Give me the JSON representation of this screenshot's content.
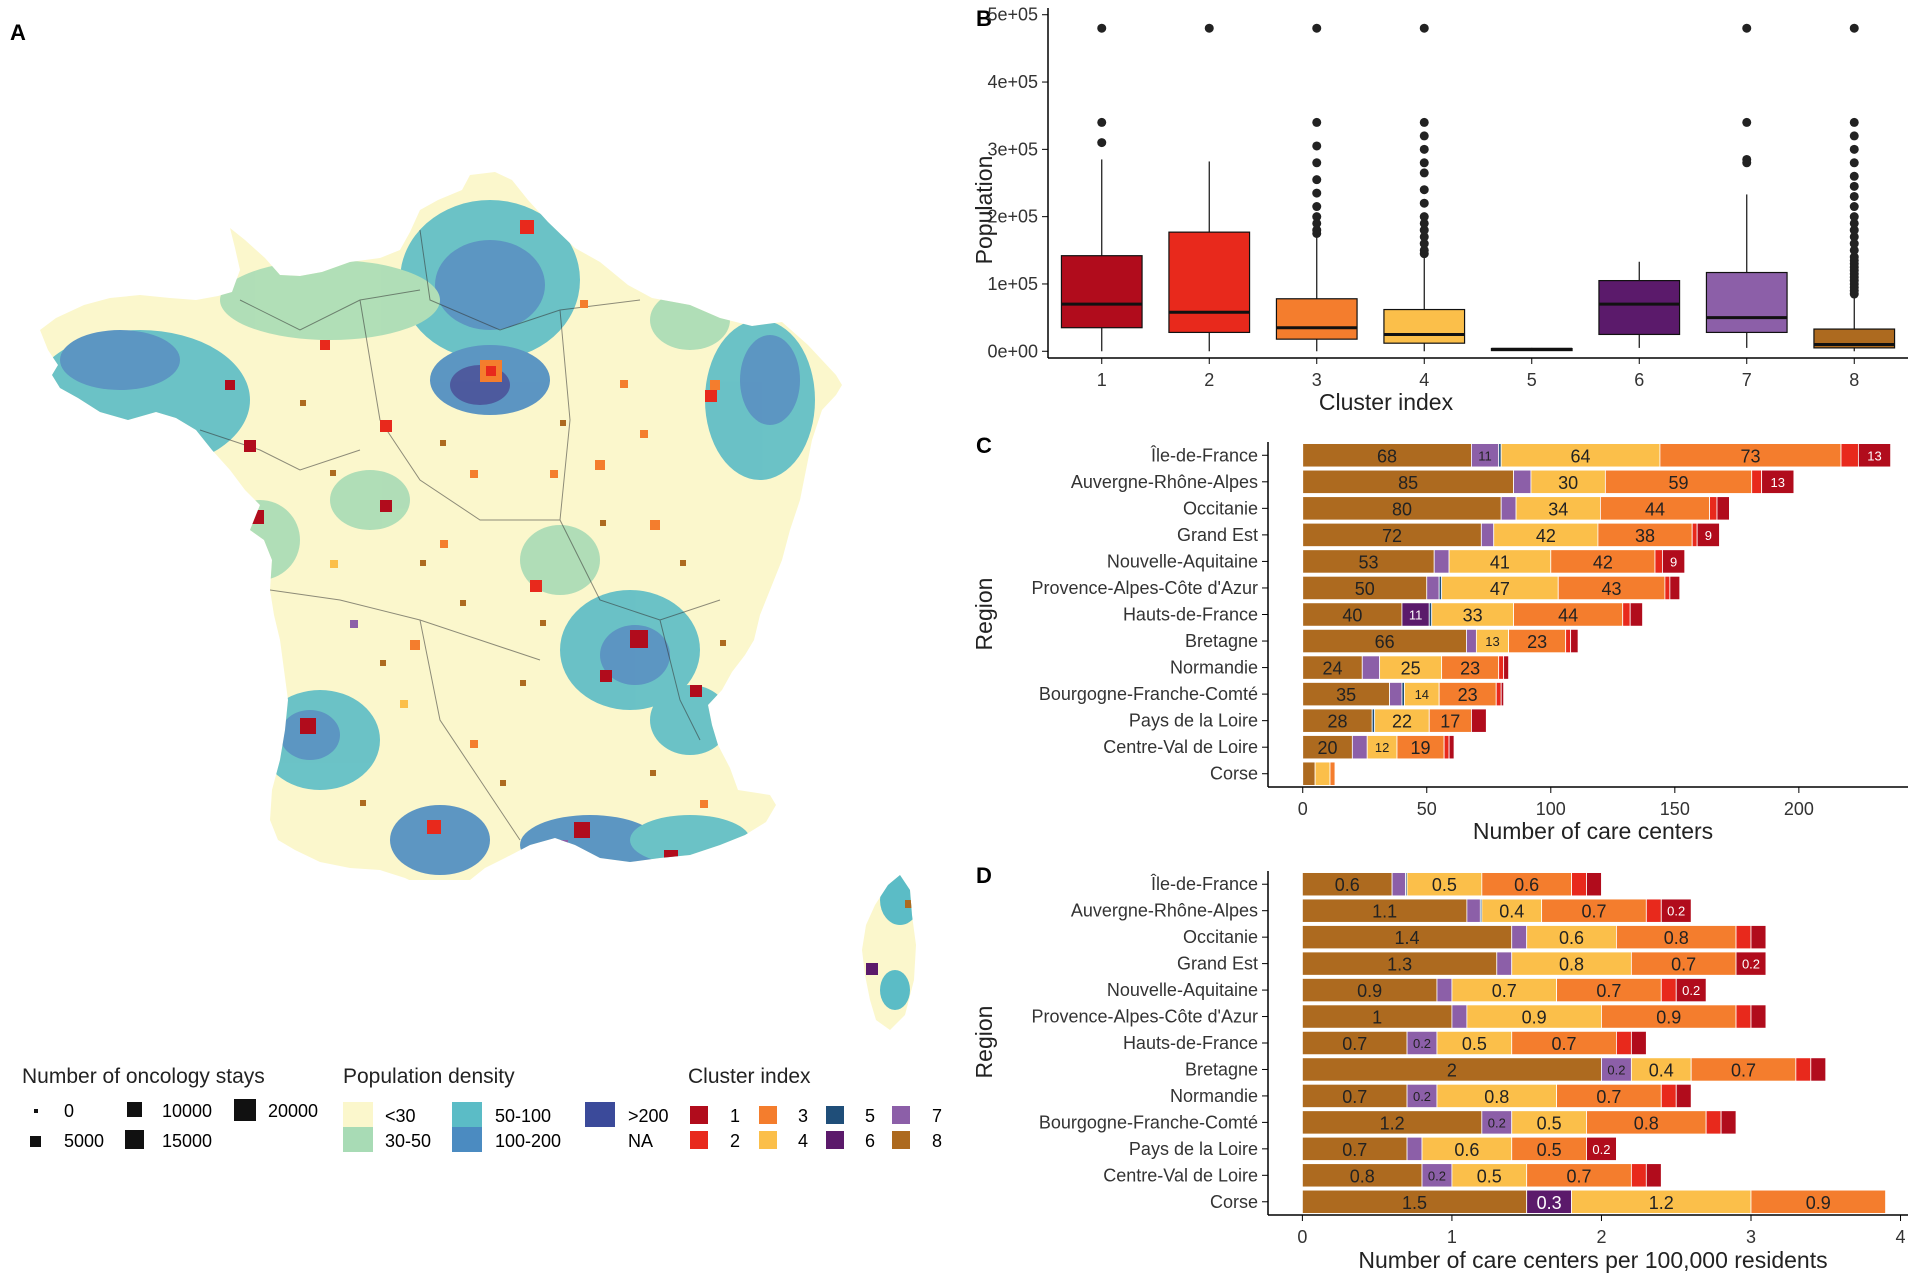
{
  "panel_labels": {
    "a": "A",
    "b": "B",
    "c": "C",
    "d": "D"
  },
  "colors": {
    "cluster": [
      "#b10c1c",
      "#e8291c",
      "#f47d2d",
      "#fbbf4a",
      "#1f4e79",
      "#5b1a6b",
      "#8c5fa8",
      "#ad6a1f"
    ],
    "density": {
      "<30": "#fbf7cc",
      "30-50": "#a8dbb5",
      "50-100": "#5bbcc6",
      "100-200": "#4b8bc1",
      ">200": "#3b4a9a",
      "NA": "#ffffff"
    }
  },
  "legend": {
    "stays": {
      "title": "Number of oncology stays",
      "items": [
        "0",
        "5000",
        "10000",
        "15000",
        "20000"
      ]
    },
    "density": {
      "title": "Population density",
      "items": [
        "<30",
        "30-50",
        "50-100",
        "100-200",
        ">200",
        "NA"
      ]
    },
    "cluster": {
      "title": "Cluster index",
      "items": [
        "1",
        "2",
        "3",
        "4",
        "5",
        "6",
        "7",
        "8"
      ]
    }
  },
  "chart_data": [
    {
      "panel": "B",
      "type": "box",
      "xlabel": "Cluster index",
      "ylabel": "Population",
      "categories": [
        "1",
        "2",
        "3",
        "4",
        "5",
        "6",
        "7",
        "8"
      ],
      "ytick_labels": [
        "0e+00",
        "1e+05",
        "2e+05",
        "3e+05",
        "4e+05",
        "5e+05"
      ],
      "yticks": [
        0,
        100000,
        200000,
        300000,
        400000,
        500000
      ],
      "ylim": [
        -10000,
        510000
      ],
      "boxes": [
        {
          "min": 0,
          "q1": 35000,
          "median": 70000,
          "q3": 142000,
          "max": 285000,
          "outliers": [
            310000,
            340000,
            480000
          ]
        },
        {
          "min": 0,
          "q1": 28000,
          "median": 58000,
          "q3": 177000,
          "max": 282000,
          "outliers": [
            480000
          ]
        },
        {
          "min": 0,
          "q1": 18000,
          "median": 35000,
          "q3": 78000,
          "max": 170000,
          "outliers": [
            175000,
            180000,
            190000,
            200000,
            215000,
            235000,
            255000,
            280000,
            305000,
            340000,
            480000
          ]
        },
        {
          "min": 0,
          "q1": 12000,
          "median": 25000,
          "q3": 62000,
          "max": 140000,
          "outliers": [
            145000,
            150000,
            160000,
            170000,
            180000,
            190000,
            200000,
            220000,
            240000,
            265000,
            280000,
            300000,
            320000,
            340000,
            480000
          ]
        },
        {
          "min": 1000,
          "q1": 2000,
          "median": 3000,
          "q3": 4000,
          "max": 5000,
          "outliers": []
        },
        {
          "min": 5000,
          "q1": 25000,
          "median": 70000,
          "q3": 105000,
          "max": 133000,
          "outliers": []
        },
        {
          "min": 5000,
          "q1": 28000,
          "median": 50000,
          "q3": 117000,
          "max": 233000,
          "outliers": [
            280000,
            285000,
            340000,
            480000
          ]
        },
        {
          "min": 0,
          "q1": 5000,
          "median": 10000,
          "q3": 33000,
          "max": 80000,
          "outliers": [
            85000,
            90000,
            95000,
            100000,
            105000,
            110000,
            115000,
            120000,
            125000,
            130000,
            135000,
            140000,
            150000,
            160000,
            170000,
            180000,
            190000,
            200000,
            215000,
            230000,
            245000,
            260000,
            280000,
            300000,
            320000,
            340000,
            480000
          ]
        }
      ]
    },
    {
      "panel": "C",
      "type": "bar",
      "orientation": "horizontal",
      "stacked": true,
      "xlabel": "Number of care centers",
      "ylabel": "Region",
      "xlim": [
        -14,
        244
      ],
      "xticks": [
        0,
        50,
        100,
        150,
        200
      ],
      "categories": [
        "Île-de-France",
        "Auvergne-Rhône-Alpes",
        "Occitanie",
        "Grand Est",
        "Nouvelle-Aquitaine",
        "Provence-Alpes-Côte d'Azur",
        "Hauts-de-France",
        "Bretagne",
        "Normandie",
        "Bourgogne-Franche-Comté",
        "Pays de la Loire",
        "Centre-Val de Loire",
        "Corse"
      ],
      "stack_order": [
        "8",
        "7",
        "6",
        "5",
        "4",
        "3",
        "2",
        "1"
      ],
      "series": [
        {
          "name": "8",
          "values": [
            68,
            85,
            80,
            72,
            53,
            50,
            40,
            66,
            24,
            35,
            28,
            20,
            5
          ]
        },
        {
          "name": "7",
          "values": [
            11,
            7,
            6,
            5,
            6,
            5,
            0,
            4,
            7,
            5,
            0,
            6,
            0
          ]
        },
        {
          "name": "6",
          "values": [
            0,
            0,
            0,
            0,
            0,
            0,
            11,
            0,
            0,
            0,
            0,
            0,
            0
          ]
        },
        {
          "name": "5",
          "values": [
            1,
            0,
            0,
            0,
            0,
            1,
            1,
            0,
            0,
            1,
            1,
            0,
            0
          ]
        },
        {
          "name": "4",
          "values": [
            64,
            30,
            34,
            42,
            41,
            47,
            33,
            13,
            25,
            14,
            22,
            12,
            6
          ]
        },
        {
          "name": "3",
          "values": [
            73,
            59,
            44,
            38,
            42,
            43,
            44,
            23,
            23,
            23,
            17,
            19,
            2
          ]
        },
        {
          "name": "2",
          "values": [
            7,
            4,
            3,
            2,
            3,
            2,
            3,
            2,
            2,
            2,
            0,
            2,
            0
          ]
        },
        {
          "name": "1",
          "values": [
            13,
            13,
            5,
            9,
            9,
            4,
            5,
            3,
            2,
            1,
            6,
            2,
            0
          ]
        }
      ]
    },
    {
      "panel": "D",
      "type": "bar",
      "orientation": "horizontal",
      "stacked": true,
      "xlabel": "Number of care centers per 100,000 residents",
      "ylabel": "Region",
      "xlim": [
        -0.23,
        4.05
      ],
      "xticks": [
        0,
        1,
        2,
        3,
        4
      ],
      "categories": [
        "Île-de-France",
        "Auvergne-Rhône-Alpes",
        "Occitanie",
        "Grand Est",
        "Nouvelle-Aquitaine",
        "Provence-Alpes-Côte d'Azur",
        "Hauts-de-France",
        "Bretagne",
        "Normandie",
        "Bourgogne-Franche-Comté",
        "Pays de la Loire",
        "Centre-Val de Loire",
        "Corse"
      ],
      "stack_order": [
        "8",
        "7",
        "6",
        "5",
        "4",
        "3",
        "2",
        "1"
      ],
      "series": [
        {
          "name": "8",
          "values": [
            0.6,
            1.1,
            1.4,
            1.3,
            0.9,
            1.0,
            0.7,
            2.0,
            0.7,
            1.2,
            0.7,
            0.8,
            1.5
          ]
        },
        {
          "name": "7",
          "values": [
            0.09,
            0.09,
            0.1,
            0.1,
            0.1,
            0.1,
            0.2,
            0.2,
            0.2,
            0.2,
            0.1,
            0.2,
            0.0
          ]
        },
        {
          "name": "6",
          "values": [
            0.0,
            0.0,
            0.0,
            0.0,
            0.0,
            0.0,
            0.0,
            0.0,
            0.0,
            0.0,
            0.0,
            0.0,
            0.3
          ]
        },
        {
          "name": "5",
          "values": [
            0.01,
            0.01,
            0.0,
            0.0,
            0.0,
            0.0,
            0.0,
            0.0,
            0.0,
            0.0,
            0.0,
            0.0,
            0.0
          ]
        },
        {
          "name": "4",
          "values": [
            0.5,
            0.4,
            0.6,
            0.8,
            0.7,
            0.9,
            0.5,
            0.4,
            0.8,
            0.5,
            0.6,
            0.5,
            1.2
          ]
        },
        {
          "name": "3",
          "values": [
            0.6,
            0.7,
            0.8,
            0.7,
            0.7,
            0.9,
            0.7,
            0.7,
            0.7,
            0.8,
            0.5,
            0.7,
            0.9
          ]
        },
        {
          "name": "2",
          "values": [
            0.1,
            0.1,
            0.1,
            0.0,
            0.1,
            0.1,
            0.1,
            0.1,
            0.1,
            0.1,
            0.0,
            0.1,
            0.0
          ]
        },
        {
          "name": "1",
          "values": [
            0.1,
            0.2,
            0.1,
            0.2,
            0.2,
            0.1,
            0.1,
            0.1,
            0.1,
            0.1,
            0.2,
            0.1,
            0.0
          ]
        }
      ]
    }
  ]
}
